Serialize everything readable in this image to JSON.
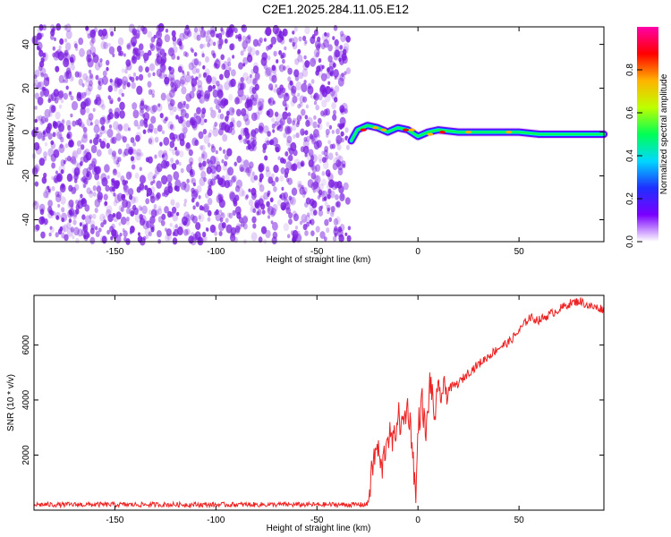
{
  "title": "C2E1.2025.284.11.05.E12",
  "colors": {
    "snr_line": "#ee2222",
    "spectrogram_points": "#7a1ee0",
    "colormap": [
      "#ffffff",
      "#7a00ff",
      "#1f2fff",
      "#00d8ff",
      "#00ff55",
      "#bfff00",
      "#ffb300",
      "#ff0000",
      "#ff00aa"
    ]
  },
  "chart_data": [
    {
      "type": "heatmap",
      "xlabel": "Height of straight line (km)",
      "ylabel": "Frequency (Hz)",
      "xlim": [
        -190,
        92
      ],
      "ylim": [
        -50,
        48
      ],
      "xticks": [
        -150,
        -100,
        -50,
        0,
        50
      ],
      "yticks": [
        -40,
        -20,
        0,
        20,
        40
      ],
      "colorbar": {
        "label": "Normalized spectral amplitude",
        "range": [
          0,
          1
        ],
        "ticks": [
          0,
          0.2,
          0.4,
          0.6,
          0.8
        ]
      },
      "noise_region_x": [
        -190,
        -33
      ],
      "signal_trace": {
        "x": [
          -33,
          -30,
          -25,
          -20,
          -15,
          -10,
          -5,
          0,
          5,
          10,
          20,
          30,
          40,
          50,
          60,
          70,
          80,
          92
        ],
        "frequency": [
          -4,
          1,
          3,
          2,
          0,
          2,
          1,
          -2,
          0,
          1,
          0,
          0,
          0,
          0,
          -1,
          -1,
          -1,
          -1
        ]
      }
    },
    {
      "type": "line",
      "xlabel": "Height of straight line (km)",
      "ylabel": "SNR (10 * v/v)",
      "xlim": [
        -190,
        92
      ],
      "ylim": [
        0,
        7800
      ],
      "xticks": [
        -150,
        -100,
        -50,
        0,
        50
      ],
      "yticks": [
        2000,
        4000,
        6000
      ],
      "series": [
        {
          "x": [
            -190,
            -150,
            -100,
            -50,
            -25,
            -22,
            -20,
            -18,
            -15,
            -12,
            -10,
            -8,
            -5,
            -3,
            -1,
            0,
            2,
            4,
            6,
            8,
            10,
            15,
            20,
            25,
            30,
            35,
            40,
            45,
            50,
            55,
            60,
            65,
            70,
            75,
            80,
            85,
            92
          ],
          "y": [
            200,
            200,
            200,
            200,
            200,
            1800,
            2300,
            1400,
            2800,
            2400,
            3500,
            3000,
            3800,
            2600,
            300,
            3000,
            4000,
            2600,
            4800,
            3400,
            4200,
            4400,
            4600,
            5000,
            5300,
            5600,
            5900,
            6100,
            6500,
            7000,
            6900,
            7100,
            7300,
            7500,
            7600,
            7400,
            7300
          ]
        }
      ]
    }
  ]
}
